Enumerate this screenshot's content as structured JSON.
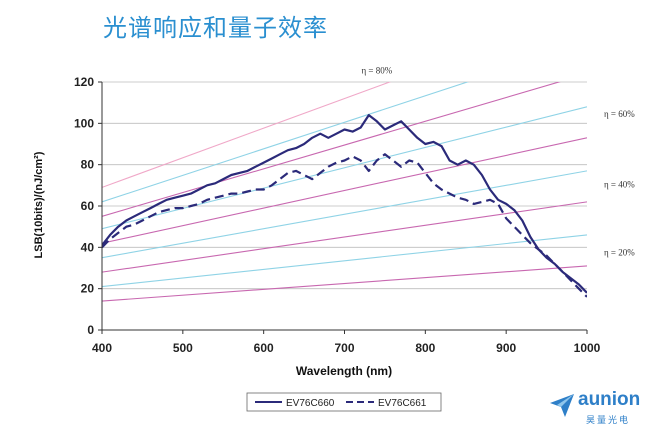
{
  "title": "光谱响应和量子效率",
  "brand": {
    "name": "aunion",
    "subtitle": "昊量光电"
  },
  "colors": {
    "title": "#2a8fd0",
    "qe_cyan": "#8fd3e6",
    "qe_magenta": "#c868b0",
    "qe_pink": "#f0a8c8",
    "series": "#2b2a7a",
    "brand": "#2e7fc8"
  },
  "chart_data": {
    "type": "line",
    "xlabel": "Wavelength (nm)",
    "ylabel": "LSB(10bits)/(nJ/cm²)",
    "xlim": [
      400,
      1000
    ],
    "ylim": [
      0,
      120
    ],
    "xticks": [
      400,
      500,
      600,
      700,
      800,
      900,
      1000
    ],
    "yticks": [
      0,
      20,
      40,
      60,
      80,
      100,
      120
    ],
    "grid": "horizontal",
    "legend_position": "bottom",
    "qe_lines": [
      {
        "eta": 10,
        "label": "",
        "color": "magenta",
        "y400": 14.0,
        "y1000": 31.0
      },
      {
        "eta": 15,
        "label": "",
        "color": "cyan",
        "y400": 21.0,
        "y1000": 46.0
      },
      {
        "eta": 20,
        "label": "η = 20%",
        "color": "magenta",
        "y400": 28.0,
        "y1000": 62.0
      },
      {
        "eta": 25,
        "label": "",
        "color": "cyan",
        "y400": 35.0,
        "y1000": 77.0
      },
      {
        "eta": 30,
        "label": "",
        "color": "magenta",
        "y400": 42.0,
        "y1000": 93.0
      },
      {
        "eta": 35,
        "label": "",
        "color": "cyan",
        "y400": 49.0,
        "y1000": 108.0
      },
      {
        "eta": 40,
        "label": "η = 40%",
        "color": "magenta",
        "y400": 55.0,
        "y1000": 124.0
      },
      {
        "eta": 45,
        "label": "",
        "color": "cyan",
        "y400": 62.0,
        "y1000": 139.0
      },
      {
        "eta": 50,
        "label": "",
        "color": "pink",
        "y400": 69.0,
        "y1000": 155.0
      }
    ],
    "qe_labels": [
      {
        "text": "η = 80%",
        "x": 740,
        "y": 124
      },
      {
        "text": "η = 60%",
        "x": 1040,
        "y": 103
      },
      {
        "text": "η = 40%",
        "x": 1040,
        "y": 69
      },
      {
        "text": "η = 20%",
        "x": 1040,
        "y": 36
      }
    ],
    "series": [
      {
        "name": "EV76C660",
        "style": "solid",
        "x": [
          400,
          410,
          420,
          430,
          440,
          450,
          460,
          470,
          480,
          490,
          500,
          510,
          520,
          530,
          540,
          550,
          560,
          570,
          580,
          590,
          600,
          610,
          620,
          630,
          640,
          650,
          660,
          670,
          680,
          690,
          700,
          710,
          720,
          730,
          740,
          750,
          760,
          770,
          780,
          790,
          800,
          810,
          820,
          830,
          840,
          850,
          860,
          870,
          880,
          890,
          900,
          910,
          920,
          930,
          940,
          950,
          960,
          970,
          980,
          990,
          1000
        ],
        "y": [
          41,
          46,
          50,
          53,
          55,
          57,
          59,
          61,
          63,
          64,
          65,
          66,
          68,
          70,
          71,
          73,
          75,
          76,
          77,
          79,
          81,
          83,
          85,
          87,
          88,
          90,
          93,
          95,
          93,
          95,
          97,
          96,
          98,
          104,
          101,
          97,
          99,
          101,
          97,
          93,
          90,
          91,
          89,
          82,
          80,
          82,
          80,
          75,
          68,
          63,
          61,
          58,
          53,
          45,
          39,
          35,
          32,
          28,
          25,
          22,
          18
        ]
      },
      {
        "name": "EV76C661",
        "style": "dashed",
        "x": [
          400,
          410,
          420,
          430,
          440,
          450,
          460,
          470,
          480,
          490,
          500,
          510,
          520,
          530,
          540,
          550,
          560,
          570,
          580,
          590,
          600,
          610,
          620,
          630,
          640,
          650,
          660,
          670,
          680,
          690,
          700,
          710,
          720,
          730,
          740,
          750,
          760,
          770,
          780,
          790,
          800,
          810,
          820,
          830,
          840,
          850,
          860,
          870,
          880,
          890,
          900,
          910,
          920,
          930,
          940,
          950,
          960,
          970,
          980,
          990,
          1000
        ],
        "y": [
          40,
          44,
          47,
          50,
          51,
          53,
          55,
          57,
          58,
          59,
          59,
          60,
          61,
          63,
          64,
          65,
          66,
          66,
          67,
          68,
          68,
          70,
          73,
          76,
          77,
          75,
          73,
          76,
          79,
          81,
          82,
          84,
          82,
          77,
          82,
          85,
          82,
          79,
          82,
          81,
          76,
          71,
          68,
          66,
          64,
          63,
          61,
          62,
          63,
          61,
          54,
          50,
          46,
          42,
          39,
          36,
          32,
          28,
          24,
          20,
          16
        ]
      }
    ]
  }
}
